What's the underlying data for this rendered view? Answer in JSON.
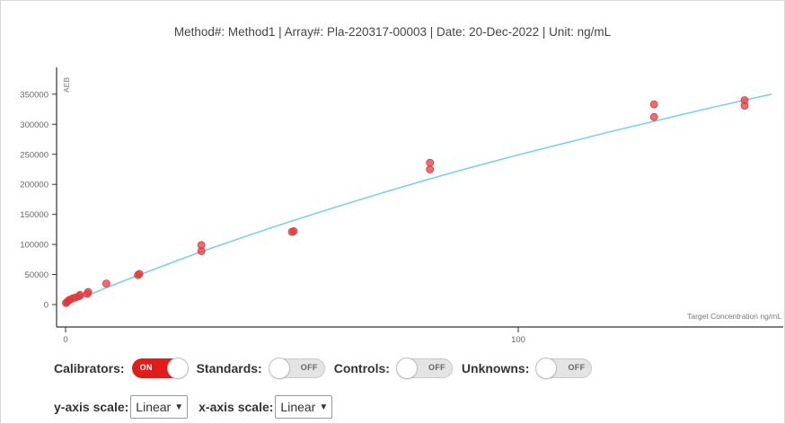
{
  "title": "Method#: Method1 | Array#: Pla-220317-00003 | Date: 20-Dec-2022 | Unit: ng/mL",
  "chart_data": {
    "type": "scatter",
    "ylabel": "AEB",
    "xlabel": "Target Concentration ng/mL",
    "xlim": [
      -3,
      155
    ],
    "ylim": [
      -5000,
      390000
    ],
    "x_ticks": [
      0,
      100
    ],
    "y_ticks": [
      0,
      50000,
      100000,
      150000,
      200000,
      250000,
      300000,
      350000
    ],
    "grid": false,
    "series": [
      {
        "kind": "points",
        "color": "#e0363c",
        "points": [
          [
            0.1,
            2500
          ],
          [
            0.3,
            4000
          ],
          [
            0.6,
            6000
          ],
          [
            0.9,
            8000
          ],
          [
            1.5,
            10000
          ],
          [
            2.2,
            12000
          ],
          [
            3.0,
            14000
          ],
          [
            3.2,
            16000
          ],
          [
            4.8,
            18000
          ],
          [
            5.0,
            21000
          ],
          [
            9.0,
            35000
          ],
          [
            16.0,
            49000
          ],
          [
            16.3,
            51000
          ],
          [
            30.0,
            89000
          ],
          [
            30.0,
            99000
          ],
          [
            50.0,
            121000
          ],
          [
            50.4,
            122000
          ],
          [
            80.5,
            225000
          ],
          [
            80.5,
            236000
          ],
          [
            130.0,
            312000
          ],
          [
            130.0,
            333000
          ],
          [
            150.0,
            331000
          ],
          [
            150.0,
            340000
          ]
        ]
      },
      {
        "kind": "fit-curve",
        "color": "#7fd0e6",
        "x": [
          0,
          10,
          20,
          30,
          40,
          50,
          60,
          70,
          80,
          90,
          100,
          110,
          120,
          130,
          140,
          150,
          156
        ],
        "y": [
          0,
          31000,
          60000,
          88000,
          114000,
          139000,
          163000,
          186000,
          208000,
          229000,
          249000,
          268000,
          287000,
          305000,
          323000,
          340000,
          350000
        ]
      }
    ]
  },
  "controls": {
    "calibrators": {
      "label": "Calibrators:",
      "state": "ON"
    },
    "standards": {
      "label": "Standards:",
      "state": "OFF"
    },
    "controls": {
      "label": "Controls:",
      "state": "OFF"
    },
    "unknowns": {
      "label": "Unknowns:",
      "state": "OFF"
    }
  },
  "scales": {
    "y_label": "y-axis scale:",
    "y_value": "Linear",
    "x_label": "x-axis scale:",
    "x_value": "Linear"
  }
}
